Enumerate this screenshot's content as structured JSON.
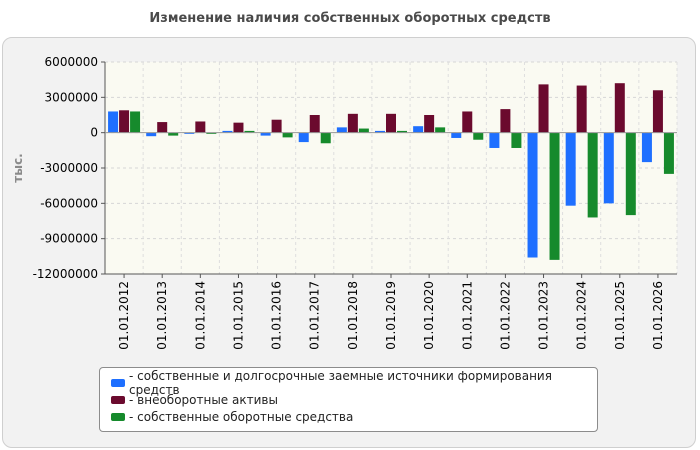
{
  "chart_data": {
    "type": "bar",
    "title": "Изменение наличия собственных оборотных средств",
    "ylabel": "тыс.",
    "xlabel": "",
    "ylim": [
      -12000000,
      6000000
    ],
    "yticks": [
      6000000,
      3000000,
      0,
      -3000000,
      -6000000,
      -9000000,
      -12000000
    ],
    "grid": true,
    "legend_position": "bottom",
    "categories": [
      "01.01.2012",
      "01.01.2013",
      "01.01.2014",
      "01.01.2015",
      "01.01.2016",
      "01.01.2017",
      "01.01.2018",
      "01.01.2019",
      "01.01.2020",
      "01.01.2021",
      "01.01.2022",
      "01.01.2023",
      "01.01.2024",
      "01.01.2025",
      "01.01.2026"
    ],
    "series": [
      {
        "name": "- собственные и долгосрочные заемные источники формирования средств",
        "color": "#1e6fff",
        "values": [
          1800000,
          -300000,
          -100000,
          150000,
          -250000,
          -800000,
          450000,
          150000,
          550000,
          -450000,
          -1300000,
          -10600000,
          -6200000,
          -6000000,
          -2500000
        ]
      },
      {
        "name": "- внеоборотные активы",
        "color": "#6b0a2e",
        "values": [
          1900000,
          900000,
          950000,
          850000,
          1100000,
          1500000,
          1600000,
          1600000,
          1500000,
          1800000,
          2000000,
          4100000,
          4000000,
          4200000,
          3600000
        ]
      },
      {
        "name": "- собственные оборотные средства",
        "color": "#168a2c",
        "values": [
          1800000,
          -250000,
          -100000,
          150000,
          -400000,
          -900000,
          350000,
          150000,
          450000,
          -600000,
          -1300000,
          -10800000,
          -7200000,
          -7000000,
          -3500000
        ]
      }
    ]
  }
}
